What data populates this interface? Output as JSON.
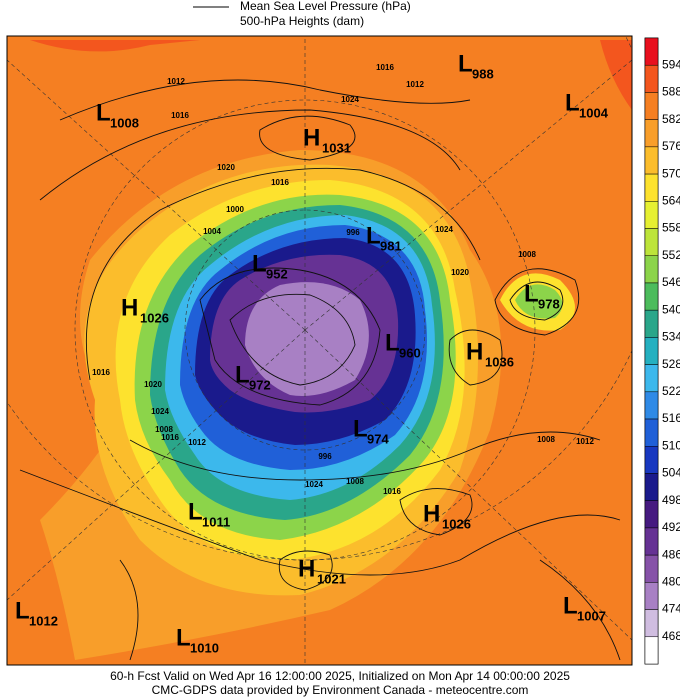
{
  "legend": {
    "line_label": "Mean Sea Level Pressure (hPa)",
    "fill_label": "500-hPa Heights (dam)"
  },
  "colorbar": {
    "ticks": [
      594,
      588,
      582,
      576,
      570,
      564,
      558,
      552,
      546,
      540,
      534,
      528,
      522,
      516,
      510,
      504,
      498,
      492,
      486,
      480,
      474,
      468
    ],
    "colors": [
      "#e8101e",
      "#f3561e",
      "#f57f22",
      "#f89e2a",
      "#fbbd2c",
      "#fde22e",
      "#e6f032",
      "#bde43a",
      "#8cd44a",
      "#4cbc5c",
      "#2aa68a",
      "#24b0c0",
      "#3cb8ec",
      "#2f8ae6",
      "#2060d8",
      "#1838c0",
      "#1a1a8c",
      "#461a80",
      "#663294",
      "#8652a8",
      "#a880c4",
      "#d0bde0",
      "#ffffff"
    ]
  },
  "centers": [
    {
      "symbol": "L",
      "value": 1008
    },
    {
      "symbol": "H",
      "value": 1031
    },
    {
      "symbol": "L",
      "value": 988
    },
    {
      "symbol": "L",
      "value": 1004
    },
    {
      "symbol": "L",
      "value": 981
    },
    {
      "symbol": "L",
      "value": 952
    },
    {
      "symbol": "H",
      "value": 1026
    },
    {
      "symbol": "L",
      "value": 978
    },
    {
      "symbol": "L",
      "value": 960
    },
    {
      "symbol": "H",
      "value": 1036
    },
    {
      "symbol": "L",
      "value": 972
    },
    {
      "symbol": "L",
      "value": 974
    },
    {
      "symbol": "L",
      "value": 1011
    },
    {
      "symbol": "H",
      "value": 1026
    },
    {
      "symbol": "H",
      "value": 1021
    },
    {
      "symbol": "L",
      "value": 1012
    },
    {
      "symbol": "L",
      "value": 1007
    },
    {
      "symbol": "L",
      "value": 1010
    }
  ],
  "isobar_labels": [
    1012,
    1016,
    1016,
    1024,
    1012,
    1020,
    1016,
    1004,
    1000,
    996,
    1024,
    1020,
    1008,
    1016,
    1020,
    1024,
    1016,
    1012,
    1008,
    1012,
    1008,
    1016,
    1024,
    1008,
    996
  ],
  "footer": {
    "line1": "60-h Fcst Valid on Wed Apr 16 12:00:00 2025, Initialized on Mon Apr 14 00:00:00 2025",
    "line2": "CMC-GDPS data provided by Environment Canada - meteocentre.com"
  }
}
